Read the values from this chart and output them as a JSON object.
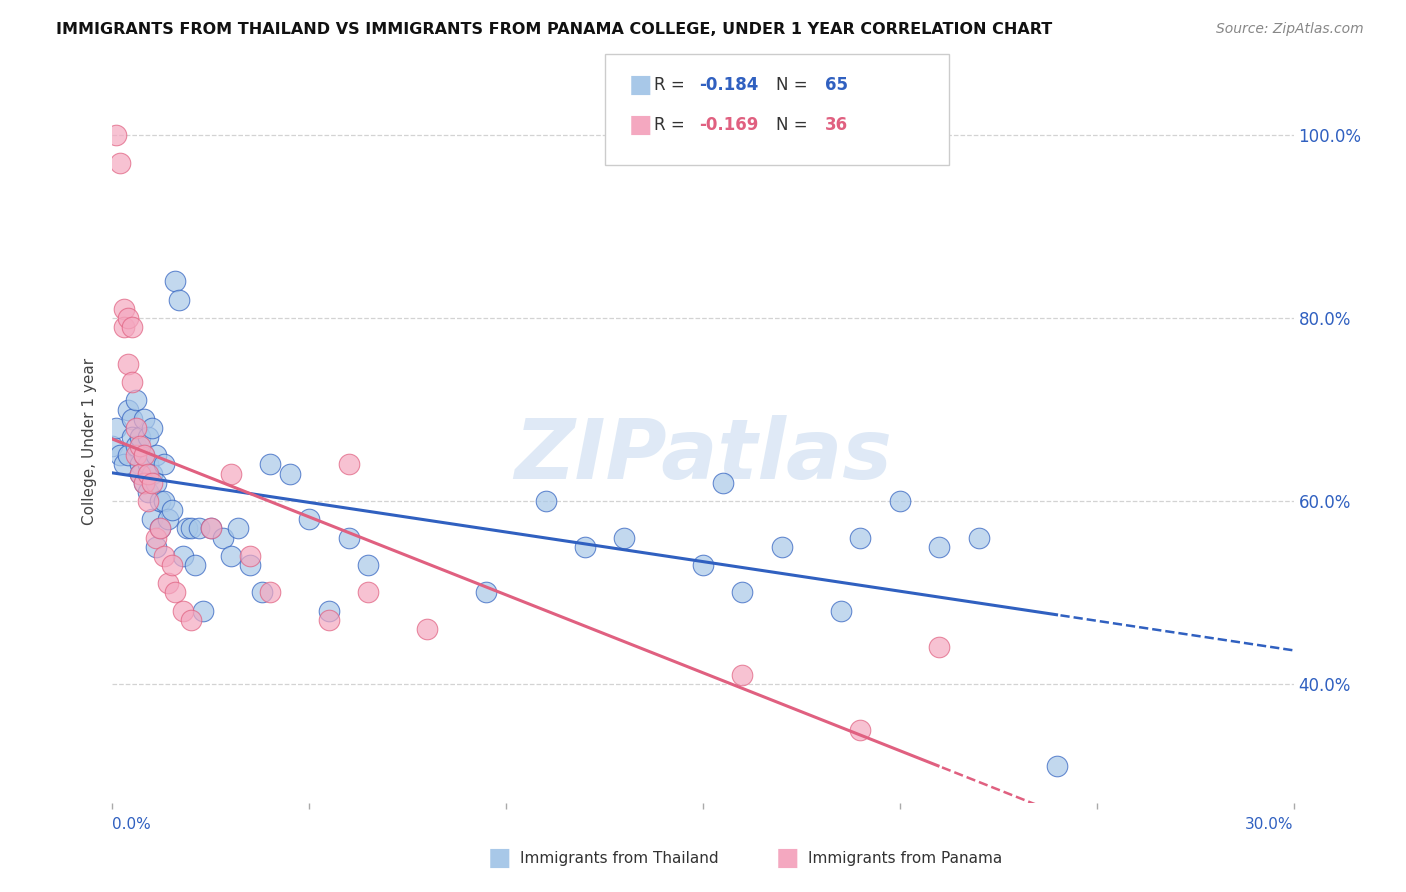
{
  "title": "IMMIGRANTS FROM THAILAND VS IMMIGRANTS FROM PANAMA COLLEGE, UNDER 1 YEAR CORRELATION CHART",
  "source": "Source: ZipAtlas.com",
  "ylabel": "College, Under 1 year",
  "watermark": "ZIPatlas",
  "xmin": 0.0,
  "xmax": 0.3,
  "ymin": 0.27,
  "ymax": 1.06,
  "thailand_color": "#a8c8e8",
  "panama_color": "#f4a8c0",
  "thailand_line_color": "#3060c0",
  "panama_line_color": "#e06080",
  "background_color": "#ffffff",
  "grid_color": "#c8c8c8",
  "thailand_points_x": [
    0.0,
    0.001,
    0.002,
    0.003,
    0.004,
    0.004,
    0.005,
    0.005,
    0.006,
    0.006,
    0.007,
    0.007,
    0.007,
    0.008,
    0.008,
    0.008,
    0.009,
    0.009,
    0.009,
    0.01,
    0.01,
    0.01,
    0.011,
    0.011,
    0.011,
    0.012,
    0.012,
    0.013,
    0.013,
    0.014,
    0.015,
    0.016,
    0.017,
    0.018,
    0.019,
    0.02,
    0.021,
    0.022,
    0.023,
    0.025,
    0.028,
    0.03,
    0.032,
    0.035,
    0.038,
    0.04,
    0.045,
    0.05,
    0.055,
    0.06,
    0.065,
    0.095,
    0.11,
    0.12,
    0.13,
    0.15,
    0.155,
    0.16,
    0.17,
    0.185,
    0.19,
    0.2,
    0.21,
    0.22,
    0.24
  ],
  "thailand_points_y": [
    0.66,
    0.68,
    0.65,
    0.64,
    0.65,
    0.7,
    0.69,
    0.67,
    0.66,
    0.71,
    0.67,
    0.64,
    0.63,
    0.69,
    0.65,
    0.62,
    0.67,
    0.64,
    0.61,
    0.68,
    0.63,
    0.58,
    0.55,
    0.65,
    0.62,
    0.6,
    0.57,
    0.64,
    0.6,
    0.58,
    0.59,
    0.84,
    0.82,
    0.54,
    0.57,
    0.57,
    0.53,
    0.57,
    0.48,
    0.57,
    0.56,
    0.54,
    0.57,
    0.53,
    0.5,
    0.64,
    0.63,
    0.58,
    0.48,
    0.56,
    0.53,
    0.5,
    0.6,
    0.55,
    0.56,
    0.53,
    0.62,
    0.5,
    0.55,
    0.48,
    0.56,
    0.6,
    0.55,
    0.56,
    0.31
  ],
  "panama_points_x": [
    0.001,
    0.002,
    0.003,
    0.003,
    0.004,
    0.004,
    0.005,
    0.005,
    0.006,
    0.006,
    0.007,
    0.007,
    0.008,
    0.008,
    0.009,
    0.009,
    0.01,
    0.011,
    0.012,
    0.013,
    0.014,
    0.015,
    0.016,
    0.018,
    0.02,
    0.025,
    0.03,
    0.035,
    0.04,
    0.055,
    0.06,
    0.065,
    0.08,
    0.16,
    0.19,
    0.21
  ],
  "panama_points_y": [
    1.0,
    0.97,
    0.81,
    0.79,
    0.8,
    0.75,
    0.79,
    0.73,
    0.68,
    0.65,
    0.66,
    0.63,
    0.65,
    0.62,
    0.63,
    0.6,
    0.62,
    0.56,
    0.57,
    0.54,
    0.51,
    0.53,
    0.5,
    0.48,
    0.47,
    0.57,
    0.63,
    0.54,
    0.5,
    0.47,
    0.64,
    0.5,
    0.46,
    0.41,
    0.35,
    0.44
  ],
  "ytick_positions": [
    1.0,
    0.8,
    0.6,
    0.4
  ],
  "ytick_labels": [
    "100.0%",
    "80.0%",
    "60.0%",
    "40.0%"
  ],
  "xtick_positions": [
    0.0,
    0.05,
    0.1,
    0.15,
    0.2,
    0.25,
    0.3
  ]
}
